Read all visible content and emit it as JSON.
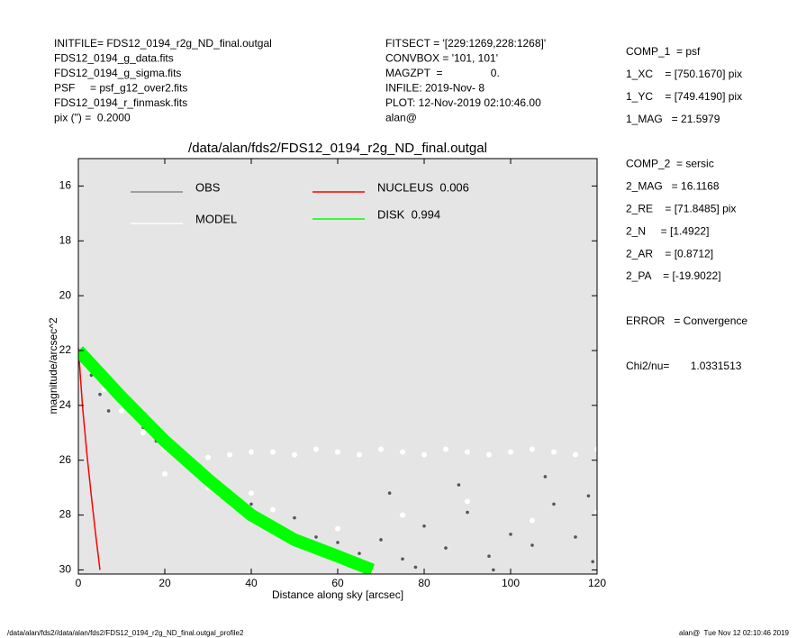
{
  "header": {
    "left": [
      "INITFILE= FDS12_0194_r2g_ND_final.outgal",
      "FDS12_0194_g_data.fits",
      "FDS12_0194_g_sigma.fits",
      "PSF     = psf_g12_over2.fits",
      "FDS12_0194_r_finmask.fits",
      "pix (\") =  0.2000"
    ],
    "middle": [
      "FITSECT = '[229:1269,228:1268]'",
      "CONVBOX = '101, 101'",
      "MAGZPT  =                0.",
      "INFILE: 2019-Nov- 8",
      "PLOT: 12-Nov-2019 02:10:46.00",
      "alan@"
    ],
    "right": [
      "COMP_1  = psf",
      "1_XC    = [750.1670] pix",
      "1_YC    = [749.4190] pix",
      "1_MAG   = 21.5979",
      "",
      "COMP_2  = sersic",
      "2_MAG   = 16.1168",
      "2_RE    = [71.8485] pix",
      "2_N     = [1.4922]",
      "2_AR    = [0.8712]",
      "2_PA    = [-19.9022]",
      "",
      "ERROR   = Convergence",
      "",
      "Chi2/nu=       1.0331513"
    ]
  },
  "footer": {
    "left": "/data/alan/fds2//data/alan/fds2/FDS12_0194_r2g_ND_final.outgal_profile2",
    "right": "alan@  Tue Nov 12 02:10:46 2019"
  },
  "chart_data": {
    "type": "scatter",
    "title": "/data/alan/fds2/FDS12_0194_r2g_ND_final.outgal",
    "xlabel": "Distance along sky [arcsec]",
    "ylabel": "magnitude/arcsec^2",
    "xlim": [
      0,
      120
    ],
    "ylim": [
      15,
      30.15
    ],
    "yinvert": true,
    "xticks": [
      0,
      20,
      40,
      60,
      80,
      100,
      120
    ],
    "yticks": [
      16,
      18,
      20,
      22,
      24,
      26,
      28,
      30
    ],
    "background": "#e5e5e5",
    "series": [
      {
        "name": "OBS",
        "type": "scatter",
        "color": "#555555",
        "x": [
          1,
          3,
          5,
          7,
          9,
          11,
          13,
          15,
          18,
          22,
          26,
          30,
          35,
          40,
          45,
          50,
          55,
          60,
          65,
          70,
          75,
          80,
          85,
          90,
          95,
          100,
          105,
          110,
          115,
          119,
          72,
          88,
          96,
          108,
          118,
          62,
          78
        ],
        "values": [
          22.3,
          22.9,
          23.6,
          24.2,
          23.5,
          24.0,
          24.4,
          24.8,
          25.3,
          25.6,
          26.3,
          26.8,
          27.2,
          27.6,
          28.3,
          28.1,
          28.8,
          29.0,
          29.4,
          28.9,
          29.6,
          28.4,
          29.2,
          27.9,
          29.5,
          28.7,
          29.1,
          27.6,
          28.8,
          29.7,
          27.2,
          26.9,
          30.0,
          26.6,
          27.3,
          29.8,
          29.9
        ]
      },
      {
        "name": "MODEL",
        "type": "scatter",
        "color": "#ffffff",
        "x": [
          2,
          6,
          10,
          15,
          20,
          25,
          30,
          35,
          40,
          45,
          50,
          55,
          60,
          65,
          70,
          75,
          80,
          85,
          90,
          95,
          100,
          105,
          110,
          115,
          120,
          30,
          45,
          60,
          75,
          90,
          105,
          120,
          20,
          40
        ],
        "values": [
          22.6,
          23.4,
          24.2,
          25.0,
          25.6,
          26.0,
          25.9,
          25.8,
          25.7,
          25.7,
          25.8,
          25.6,
          25.7,
          25.8,
          25.6,
          25.7,
          25.8,
          25.6,
          25.7,
          25.8,
          25.7,
          25.6,
          25.7,
          25.8,
          25.6,
          27.0,
          27.8,
          28.5,
          28.0,
          27.5,
          28.2,
          27.9,
          26.5,
          27.2
        ]
      },
      {
        "name": "NUCLEUS  0.006",
        "type": "line",
        "color": "#ff0000",
        "x": [
          0,
          0.5,
          1,
          2,
          3,
          4,
          5
        ],
        "values": [
          21.9,
          23,
          24.1,
          25.8,
          27.3,
          28.7,
          30
        ]
      },
      {
        "name": "DISK  0.994",
        "type": "band",
        "color": "#00ff00",
        "x": [
          0,
          10,
          20,
          30,
          40,
          50,
          60,
          68
        ],
        "values": [
          22,
          23.7,
          25.3,
          26.7,
          28,
          28.9,
          29.5,
          30
        ]
      }
    ]
  }
}
